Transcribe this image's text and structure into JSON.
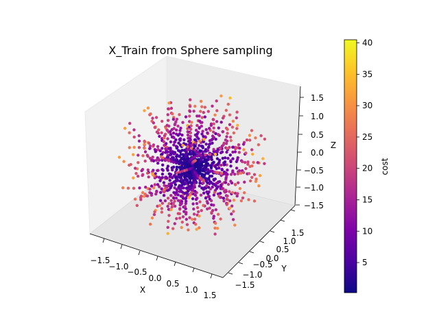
{
  "chart_data": {
    "type": "scatter3d",
    "title": "X_Train from Sphere sampling",
    "xlabel": "X",
    "ylabel": "Y",
    "zlabel": "Z",
    "x_ticks": [
      "−1.5",
      "−1.0",
      "−0.5",
      "0.0",
      "0.5",
      "1.0",
      "1.5"
    ],
    "y_ticks": [
      "−1.5",
      "−1.0",
      "−0.5",
      "0.0",
      "0.5",
      "1.0",
      "1.5"
    ],
    "z_ticks": [
      "−1.5",
      "−1.0",
      "−0.5",
      "0.0",
      "0.5",
      "1.0",
      "1.5"
    ],
    "xlim": [
      -1.7,
      1.7
    ],
    "ylim": [
      -1.7,
      1.7
    ],
    "zlim": [
      -1.7,
      1.7
    ],
    "colorbar": {
      "label": "cost",
      "colormap": "plasma",
      "range": [
        0.2,
        40.5
      ],
      "ticks": [
        "5",
        "10",
        "15",
        "20",
        "25",
        "30",
        "35",
        "40"
      ]
    },
    "trajectories": {
      "count": 110,
      "points_per_trajectory": 13,
      "start_radius": 1.55,
      "end_radius": 0.05,
      "cost_at_start": 24,
      "cost_at_end": 1
    }
  }
}
